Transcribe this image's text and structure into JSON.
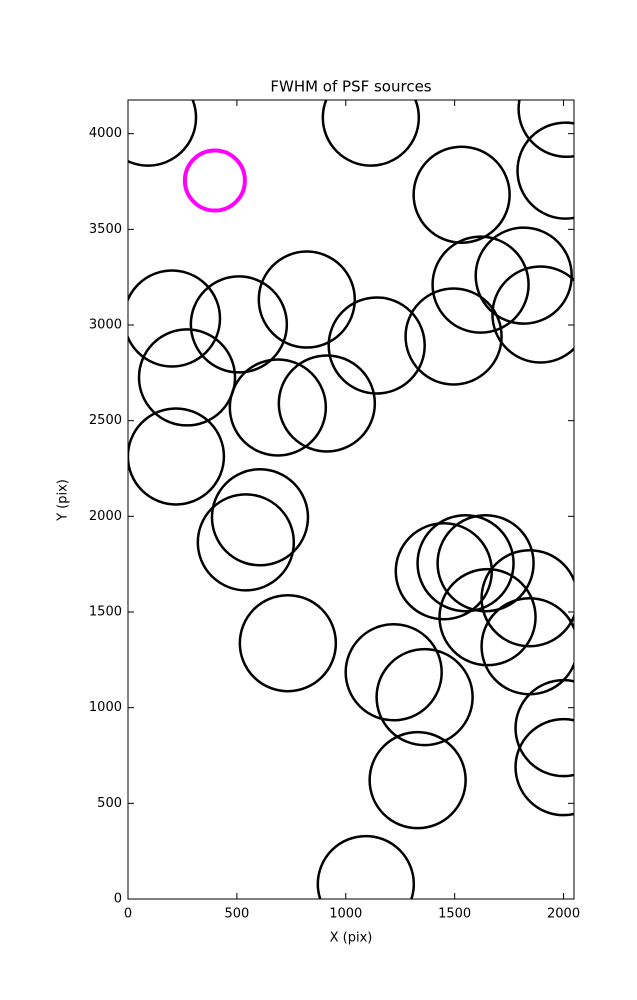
{
  "chart_data": {
    "type": "scatter",
    "title": "FWHM of PSF sources",
    "x_label": "X (pix)",
    "y_label": "Y (pix)",
    "xlim": [
      0,
      2048
    ],
    "ylim": [
      0,
      4176
    ],
    "xticks": [
      0,
      500,
      1000,
      1500,
      2000
    ],
    "yticks": [
      0,
      500,
      1000,
      1500,
      2000,
      2500,
      3000,
      3500,
      4000
    ],
    "series": [
      {
        "color": "#000000",
        "x": [
          92,
          1115,
          2014,
          2009,
          1532,
          1619,
          1817,
          1894,
          202,
          509,
          821,
          1142,
          1495,
          271,
          688,
          913,
          220,
          606,
          541,
          734,
          1450,
          1550,
          1642,
          1844,
          1651,
          1844,
          1220,
          1362,
          2000,
          2000,
          1330,
          1092
        ],
        "values": [
          4084,
          4084,
          4130,
          3807,
          3681,
          3211,
          3258,
          3055,
          3034,
          3003,
          3133,
          2893,
          2940,
          2726,
          2569,
          2590,
          2313,
          1995,
          1864,
          1337,
          1713,
          1755,
          1755,
          1572,
          1473,
          1321,
          1185,
          1055,
          893,
          689,
          621,
          78
        ]
      },
      {
        "color": "#ff00ff",
        "x": [
          399
        ],
        "values": [
          3755
        ]
      }
    ]
  }
}
